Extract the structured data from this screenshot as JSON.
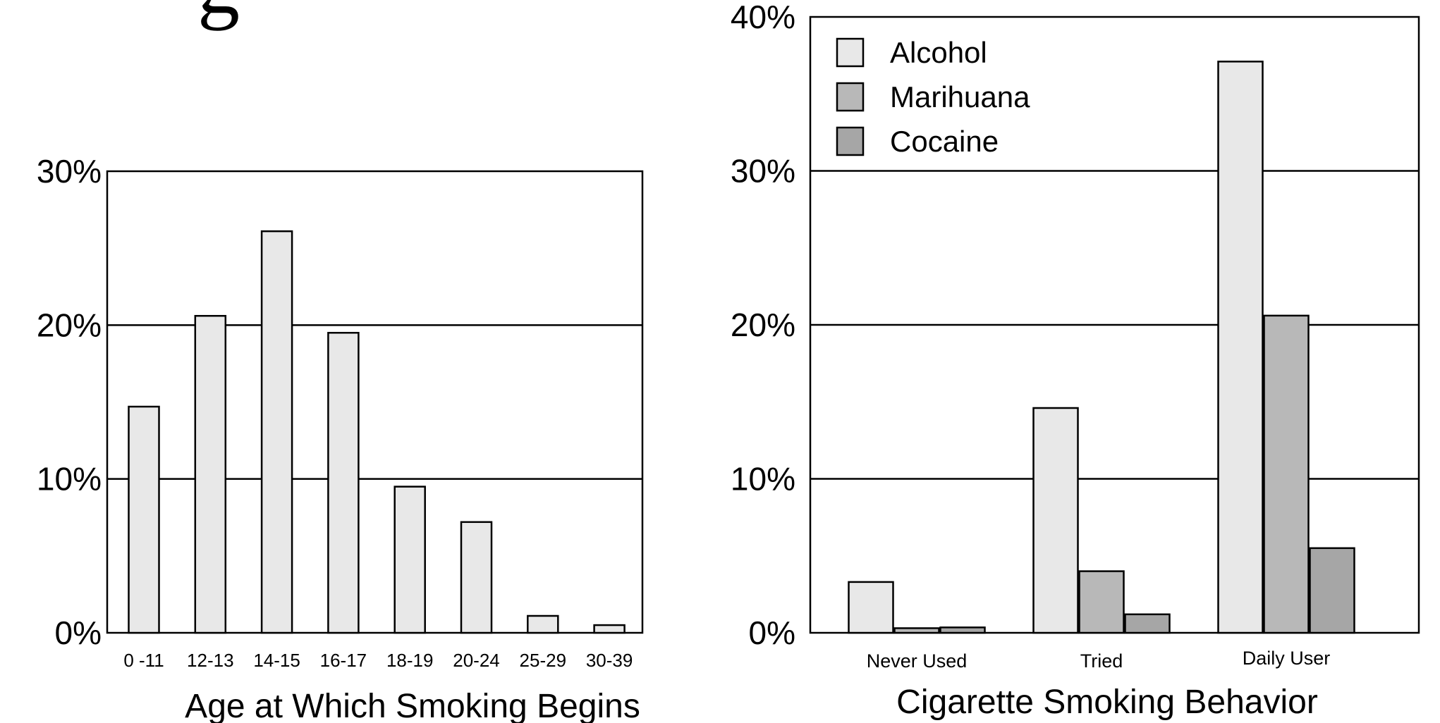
{
  "title_fragment": "g",
  "chart_data": [
    {
      "type": "bar",
      "xlabel": "Age at Which Smoking Begins",
      "ylabel": "",
      "categories": [
        "0 -11",
        "12-13",
        "14-15",
        "16-17",
        "18-19",
        "20-24",
        "25-29",
        "30-39"
      ],
      "values": [
        14.7,
        20.6,
        26.1,
        19.5,
        9.5,
        7.2,
        1.1,
        0.5
      ],
      "ylim": [
        0,
        30
      ],
      "yticks": [
        "0%",
        "10%",
        "20%",
        "30%"
      ],
      "grid": true,
      "color": "#e8e8e8"
    },
    {
      "type": "bar",
      "xlabel": "Cigarette Smoking Behavior",
      "ylabel": "",
      "categories": [
        "Never Used",
        "Tried",
        "Daily User"
      ],
      "series": [
        {
          "name": "Alcohol",
          "values": [
            3.3,
            14.6,
            37.1
          ],
          "color": "#e8e8e8"
        },
        {
          "name": "Marihuana",
          "values": [
            0.3,
            4.0,
            20.6
          ],
          "color": "#b8b8b8"
        },
        {
          "name": "Cocaine",
          "values": [
            0.35,
            1.2,
            5.5
          ],
          "color": "#a6a6a6"
        }
      ],
      "ylim": [
        0,
        40
      ],
      "yticks": [
        "0%",
        "10%",
        "20%",
        "30%",
        "40%"
      ],
      "grid": true,
      "legend": "top-left"
    }
  ]
}
